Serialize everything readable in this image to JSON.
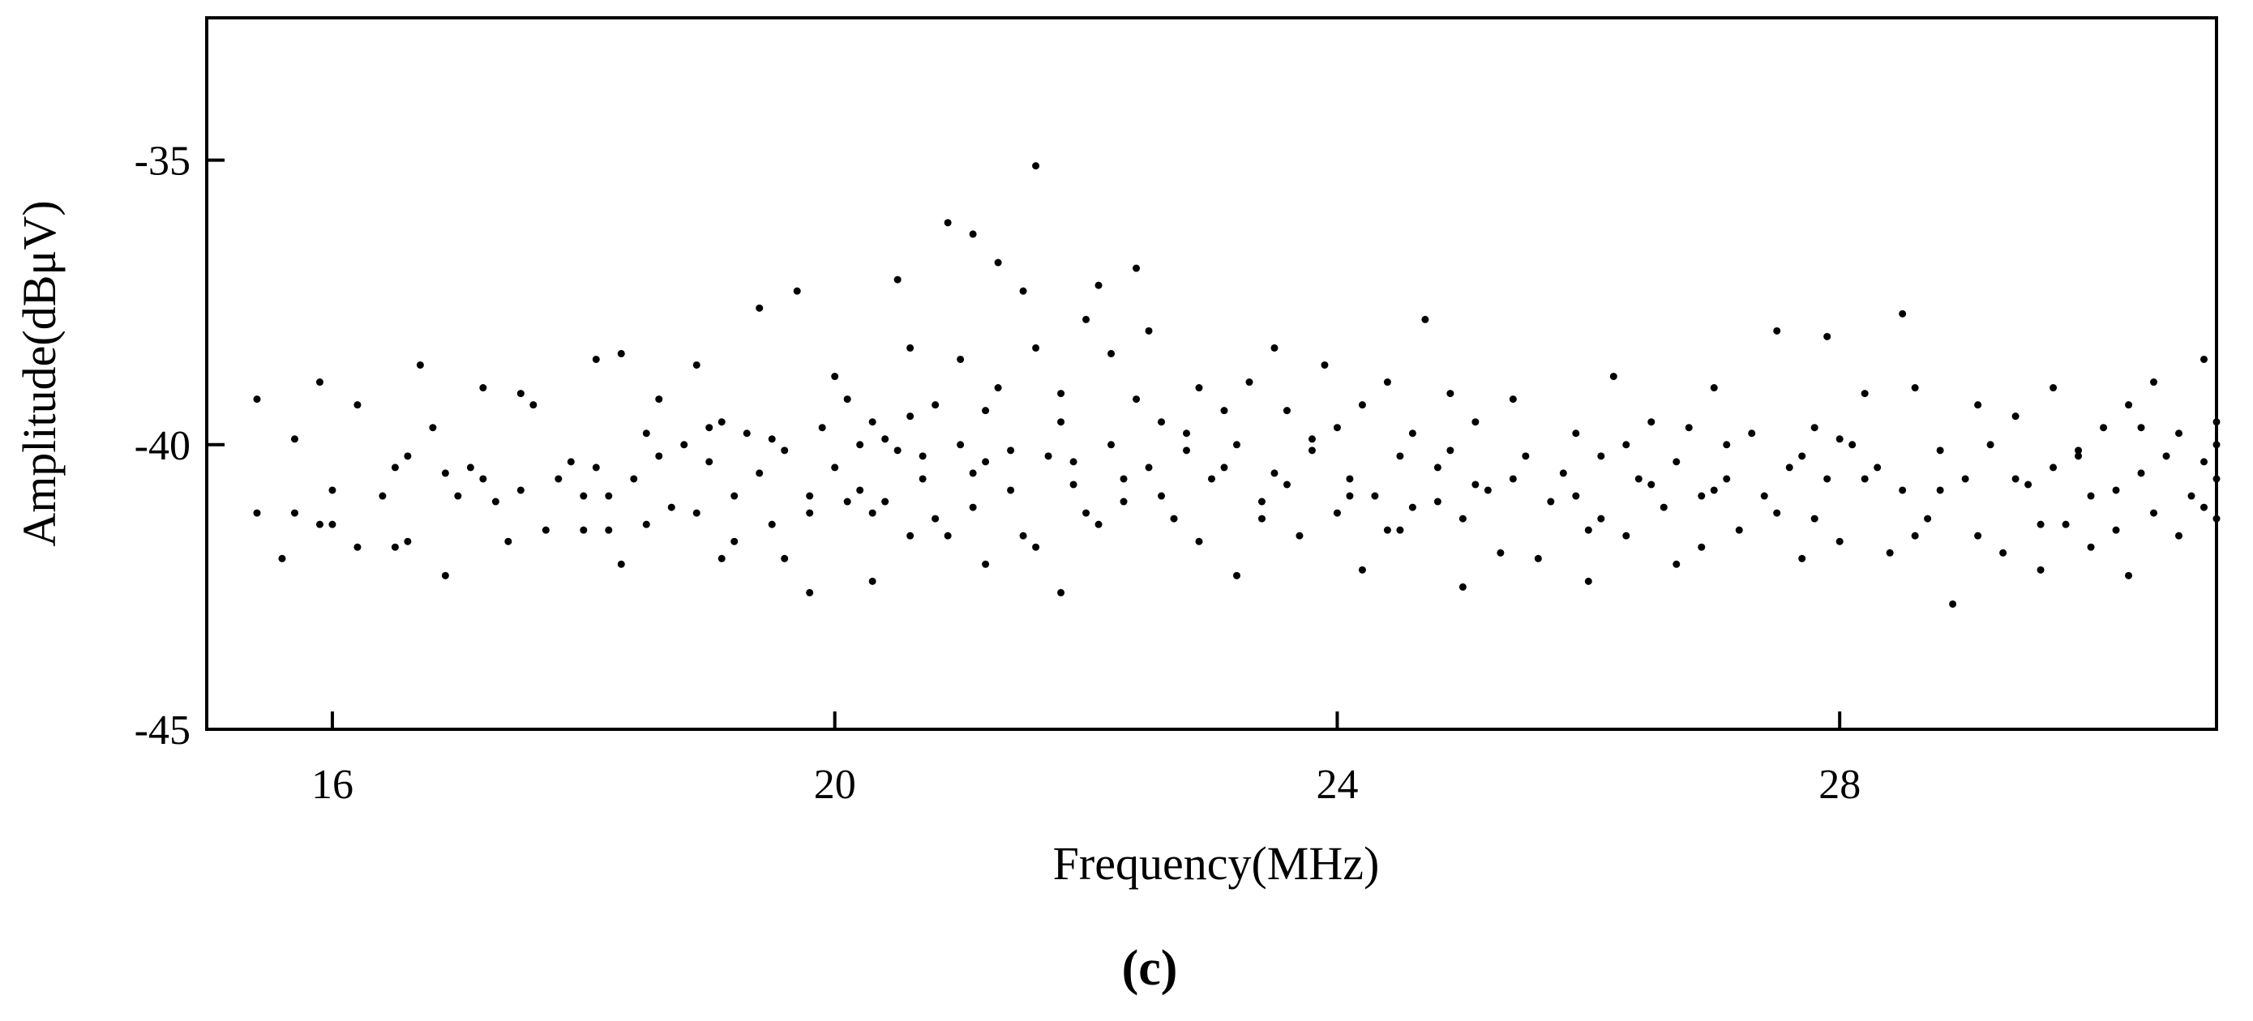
{
  "chart_data": {
    "type": "scatter",
    "title": "",
    "xlabel": "Frequency(MHz)",
    "ylabel": "Amplitude(dBμV)",
    "caption": "(c)",
    "xlim": [
      15,
      31
    ],
    "ylim": [
      -45,
      -32.5
    ],
    "xticks": [
      16,
      20,
      24,
      28
    ],
    "xtick_labels": [
      "16",
      "20",
      "24",
      "28"
    ],
    "yticks": [
      -35,
      -40,
      -45
    ],
    "ytick_labels": [
      "-35",
      "-40",
      "-45"
    ],
    "grid": false,
    "legend": "none",
    "marker_color": "#000000",
    "points": [
      [
        15.4,
        -39.2
      ],
      [
        15.4,
        -41.2
      ],
      [
        15.6,
        -42.0
      ],
      [
        15.7,
        -39.9
      ],
      [
        15.7,
        -41.2
      ],
      [
        15.9,
        -38.9
      ],
      [
        16.0,
        -40.8
      ],
      [
        16.0,
        -41.4
      ],
      [
        16.2,
        -41.8
      ],
      [
        16.2,
        -39.3
      ],
      [
        16.4,
        -40.9
      ],
      [
        16.5,
        -40.4
      ],
      [
        16.5,
        -41.8
      ],
      [
        16.6,
        -41.7
      ],
      [
        16.7,
        -38.6
      ],
      [
        16.8,
        -39.7
      ],
      [
        16.9,
        -42.3
      ],
      [
        17.0,
        -40.9
      ],
      [
        17.1,
        -40.4
      ],
      [
        17.2,
        -39.0
      ],
      [
        17.2,
        -40.6
      ],
      [
        17.3,
        -41.0
      ],
      [
        17.4,
        -41.7
      ],
      [
        17.5,
        -39.1
      ],
      [
        17.6,
        -39.3
      ],
      [
        17.7,
        -41.5
      ],
      [
        17.8,
        -40.6
      ],
      [
        17.9,
        -40.3
      ],
      [
        18.0,
        -40.9
      ],
      [
        18.0,
        -41.5
      ],
      [
        18.1,
        -38.5
      ],
      [
        18.1,
        -40.4
      ],
      [
        18.2,
        -41.5
      ],
      [
        18.3,
        -38.4
      ],
      [
        18.3,
        -42.1
      ],
      [
        18.4,
        -40.6
      ],
      [
        18.5,
        -41.4
      ],
      [
        18.5,
        -39.8
      ],
      [
        18.6,
        -39.2
      ],
      [
        18.6,
        -40.2
      ],
      [
        18.7,
        -41.1
      ],
      [
        18.8,
        -40.0
      ],
      [
        18.9,
        -38.6
      ],
      [
        18.9,
        -41.2
      ],
      [
        19.0,
        -40.3
      ],
      [
        19.1,
        -39.6
      ],
      [
        19.1,
        -42.0
      ],
      [
        19.2,
        -40.9
      ],
      [
        19.2,
        -41.7
      ],
      [
        19.3,
        -39.8
      ],
      [
        19.4,
        -40.5
      ],
      [
        19.4,
        -37.6
      ],
      [
        19.5,
        -41.4
      ],
      [
        19.6,
        -40.1
      ],
      [
        19.6,
        -42.0
      ],
      [
        19.7,
        -37.3
      ],
      [
        19.8,
        -41.2
      ],
      [
        19.8,
        -42.6
      ],
      [
        19.9,
        -39.7
      ],
      [
        20.0,
        -38.8
      ],
      [
        20.0,
        -40.4
      ],
      [
        20.1,
        -41.0
      ],
      [
        20.1,
        -39.2
      ],
      [
        20.2,
        -40.8
      ],
      [
        20.3,
        -39.6
      ],
      [
        20.3,
        -42.4
      ],
      [
        20.4,
        -41.0
      ],
      [
        20.5,
        -37.1
      ],
      [
        20.5,
        -40.1
      ],
      [
        20.6,
        -41.6
      ],
      [
        20.6,
        -38.3
      ],
      [
        20.7,
        -40.6
      ],
      [
        20.8,
        -39.3
      ],
      [
        20.8,
        -41.3
      ],
      [
        20.9,
        -36.1
      ],
      [
        21.0,
        -40.0
      ],
      [
        21.0,
        -38.5
      ],
      [
        21.1,
        -41.1
      ],
      [
        21.1,
        -36.3
      ],
      [
        21.2,
        -40.3
      ],
      [
        21.2,
        -42.1
      ],
      [
        21.3,
        -39.0
      ],
      [
        21.3,
        -36.8
      ],
      [
        21.4,
        -40.8
      ],
      [
        21.5,
        -37.3
      ],
      [
        21.5,
        -41.6
      ],
      [
        21.6,
        -38.3
      ],
      [
        21.6,
        -35.1
      ],
      [
        21.7,
        -40.2
      ],
      [
        21.8,
        -42.6
      ],
      [
        21.8,
        -39.1
      ],
      [
        21.9,
        -40.7
      ],
      [
        22.0,
        -37.8
      ],
      [
        22.0,
        -41.2
      ],
      [
        22.1,
        -37.2
      ],
      [
        22.2,
        -40.0
      ],
      [
        22.2,
        -38.4
      ],
      [
        22.3,
        -41.0
      ],
      [
        22.4,
        -36.9
      ],
      [
        22.5,
        -40.4
      ],
      [
        22.5,
        -38.0
      ],
      [
        22.6,
        -39.6
      ],
      [
        22.7,
        -41.3
      ],
      [
        22.8,
        -40.1
      ],
      [
        22.9,
        -39.0
      ],
      [
        22.9,
        -41.7
      ],
      [
        23.0,
        -40.6
      ],
      [
        23.1,
        -39.4
      ],
      [
        23.2,
        -42.3
      ],
      [
        23.2,
        -40.0
      ],
      [
        23.3,
        -38.9
      ],
      [
        23.4,
        -41.0
      ],
      [
        23.5,
        -38.3
      ],
      [
        23.5,
        -40.5
      ],
      [
        23.6,
        -39.4
      ],
      [
        23.7,
        -41.6
      ],
      [
        23.8,
        -40.1
      ],
      [
        23.9,
        -38.6
      ],
      [
        24.0,
        -41.2
      ],
      [
        24.0,
        -39.7
      ],
      [
        24.1,
        -40.6
      ],
      [
        24.2,
        -42.2
      ],
      [
        24.2,
        -39.3
      ],
      [
        24.3,
        -40.9
      ],
      [
        24.4,
        -38.9
      ],
      [
        24.5,
        -41.5
      ],
      [
        24.5,
        -40.2
      ],
      [
        24.6,
        -39.8
      ],
      [
        24.7,
        -37.8
      ],
      [
        24.8,
        -41.0
      ],
      [
        24.8,
        -40.4
      ],
      [
        24.9,
        -39.1
      ],
      [
        25.0,
        -42.5
      ],
      [
        25.0,
        -41.3
      ],
      [
        25.1,
        -39.6
      ],
      [
        25.2,
        -40.8
      ],
      [
        25.3,
        -41.9
      ],
      [
        25.4,
        -39.2
      ],
      [
        25.5,
        -40.2
      ],
      [
        25.6,
        -42.0
      ],
      [
        25.7,
        -41.0
      ],
      [
        25.8,
        -40.5
      ],
      [
        25.9,
        -39.8
      ],
      [
        26.0,
        -42.4
      ],
      [
        26.1,
        -41.3
      ],
      [
        26.1,
        -40.2
      ],
      [
        26.2,
        -38.8
      ],
      [
        26.3,
        -41.6
      ],
      [
        26.4,
        -40.6
      ],
      [
        26.5,
        -39.6
      ],
      [
        26.6,
        -41.1
      ],
      [
        26.7,
        -42.1
      ],
      [
        26.7,
        -40.3
      ],
      [
        26.8,
        -39.7
      ],
      [
        26.9,
        -41.8
      ],
      [
        27.0,
        -39.0
      ],
      [
        27.0,
        -40.8
      ],
      [
        27.1,
        -40.0
      ],
      [
        27.2,
        -41.5
      ],
      [
        27.3,
        -39.8
      ],
      [
        27.4,
        -40.9
      ],
      [
        27.5,
        -38.0
      ],
      [
        27.5,
        -41.2
      ],
      [
        27.6,
        -40.4
      ],
      [
        27.7,
        -42.0
      ],
      [
        27.8,
        -39.7
      ],
      [
        27.9,
        -38.1
      ],
      [
        27.9,
        -40.6
      ],
      [
        28.0,
        -41.7
      ],
      [
        28.1,
        -40.0
      ],
      [
        28.2,
        -39.1
      ],
      [
        28.3,
        -40.4
      ],
      [
        28.4,
        -41.9
      ],
      [
        28.5,
        -37.7
      ],
      [
        28.5,
        -40.8
      ],
      [
        28.6,
        -39.0
      ],
      [
        28.7,
        -41.3
      ],
      [
        28.8,
        -40.1
      ],
      [
        28.9,
        -42.8
      ],
      [
        29.0,
        -40.6
      ],
      [
        29.1,
        -39.3
      ],
      [
        29.1,
        -41.6
      ],
      [
        29.2,
        -40.0
      ],
      [
        29.3,
        -41.9
      ],
      [
        29.4,
        -39.5
      ],
      [
        29.5,
        -40.7
      ],
      [
        29.6,
        -42.2
      ],
      [
        29.7,
        -39.0
      ],
      [
        29.7,
        -40.4
      ],
      [
        29.8,
        -41.4
      ],
      [
        29.9,
        -40.1
      ],
      [
        30.0,
        -41.8
      ],
      [
        30.1,
        -39.7
      ],
      [
        30.2,
        -40.8
      ],
      [
        30.3,
        -42.3
      ],
      [
        30.3,
        -39.3
      ],
      [
        30.4,
        -40.5
      ],
      [
        30.5,
        -41.2
      ],
      [
        30.5,
        -38.9
      ],
      [
        30.6,
        -40.2
      ],
      [
        30.7,
        -41.6
      ],
      [
        30.7,
        -39.8
      ],
      [
        30.8,
        -40.9
      ],
      [
        30.9,
        -38.5
      ],
      [
        30.9,
        -41.1
      ],
      [
        30.9,
        -40.3
      ],
      [
        31.0,
        -39.6
      ],
      [
        31.0,
        -41.3
      ],
      [
        31.0,
        -40.6
      ],
      [
        31.0,
        -40.0
      ],
      [
        19.0,
        -39.7
      ],
      [
        19.5,
        -39.9
      ],
      [
        20.2,
        -40.0
      ],
      [
        20.4,
        -39.9
      ],
      [
        20.7,
        -40.2
      ],
      [
        21.1,
        -40.5
      ],
      [
        21.4,
        -40.1
      ],
      [
        21.9,
        -40.3
      ],
      [
        22.3,
        -40.6
      ],
      [
        22.6,
        -40.9
      ],
      [
        23.1,
        -40.4
      ],
      [
        23.6,
        -40.7
      ],
      [
        24.1,
        -40.9
      ],
      [
        24.6,
        -41.1
      ],
      [
        25.1,
        -40.7
      ],
      [
        25.9,
        -40.9
      ],
      [
        26.5,
        -40.7
      ],
      [
        27.1,
        -40.6
      ],
      [
        27.7,
        -40.2
      ],
      [
        28.2,
        -40.6
      ],
      [
        28.8,
        -40.8
      ],
      [
        29.4,
        -40.6
      ],
      [
        30.0,
        -40.9
      ],
      [
        20.9,
        -41.6
      ],
      [
        21.6,
        -41.8
      ],
      [
        22.1,
        -41.4
      ],
      [
        23.4,
        -41.3
      ],
      [
        24.4,
        -41.5
      ],
      [
        26.0,
        -41.5
      ],
      [
        27.8,
        -41.3
      ],
      [
        29.6,
        -41.4
      ],
      [
        18.2,
        -40.9
      ],
      [
        17.5,
        -40.8
      ],
      [
        16.9,
        -40.5
      ],
      [
        19.8,
        -40.9
      ],
      [
        20.6,
        -39.5
      ],
      [
        21.8,
        -39.6
      ],
      [
        22.8,
        -39.8
      ],
      [
        24.9,
        -40.1
      ],
      [
        26.3,
        -40.0
      ],
      [
        28.0,
        -39.9
      ],
      [
        29.9,
        -40.2
      ],
      [
        30.4,
        -39.7
      ],
      [
        15.9,
        -41.4
      ],
      [
        16.6,
        -40.2
      ],
      [
        20.3,
        -41.2
      ],
      [
        21.2,
        -39.4
      ],
      [
        22.4,
        -39.2
      ],
      [
        23.8,
        -39.9
      ],
      [
        25.4,
        -40.6
      ],
      [
        26.9,
        -40.9
      ],
      [
        28.6,
        -41.6
      ],
      [
        30.2,
        -41.5
      ]
    ]
  }
}
